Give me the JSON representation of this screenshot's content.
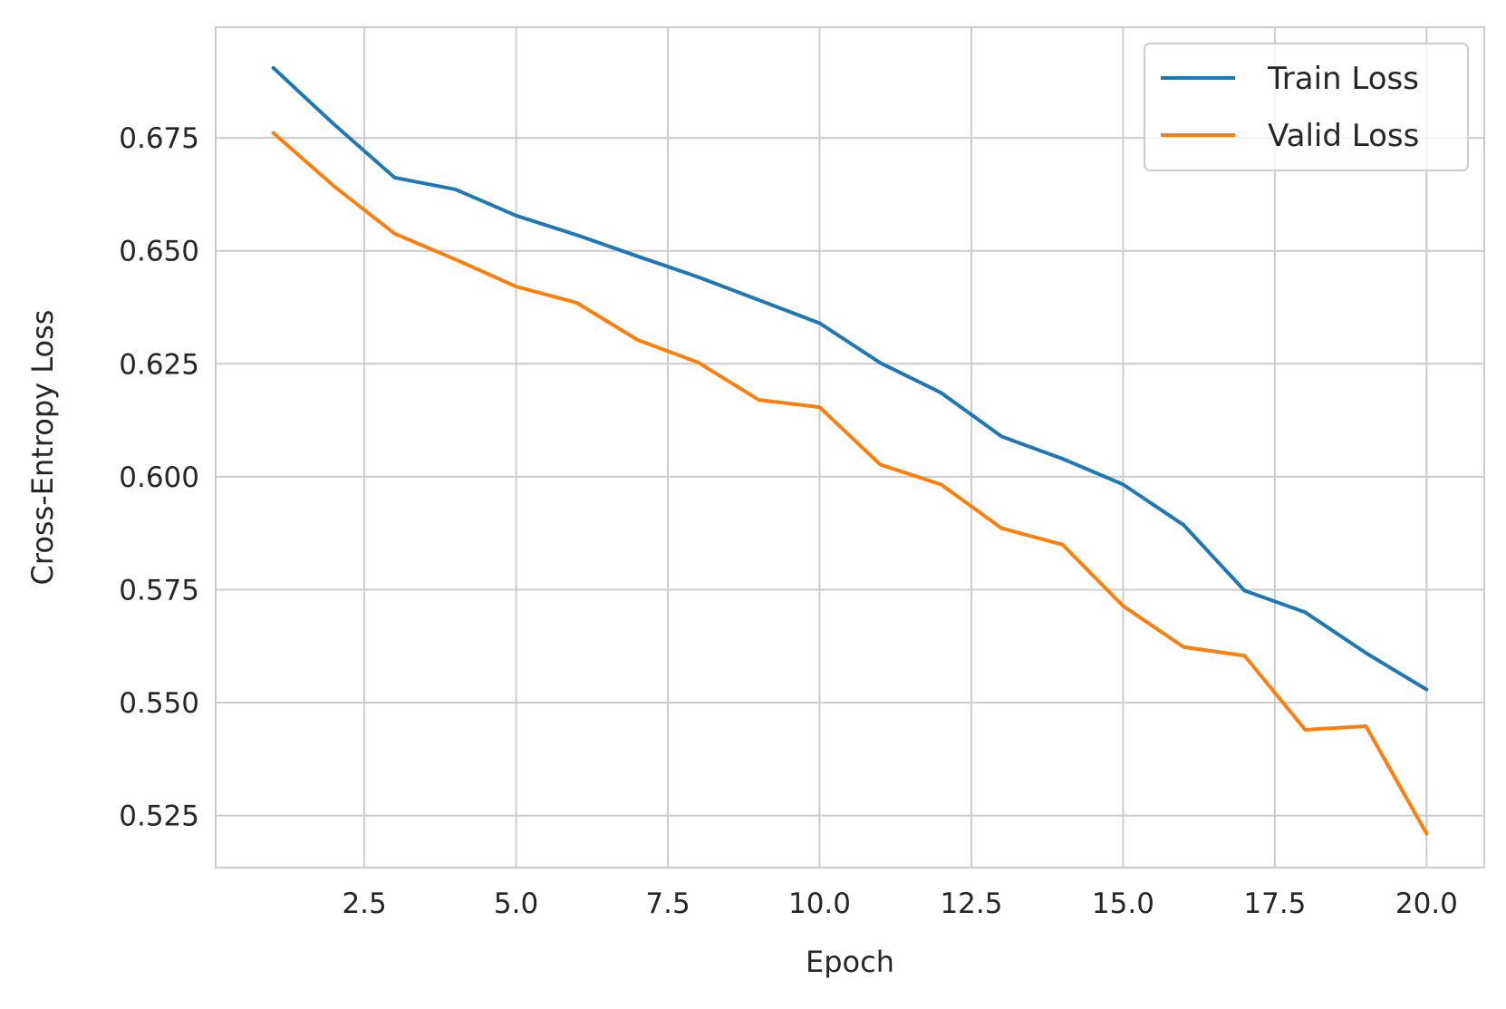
{
  "chart_data": {
    "type": "line",
    "title": "",
    "xlabel": "Epoch",
    "ylabel": "Cross-Entropy Loss",
    "xlim": [
      0.05,
      20.95
    ],
    "ylim": [
      0.5135,
      0.6995
    ],
    "grid": true,
    "legend_position": "top-right",
    "x": [
      1,
      2,
      3,
      4,
      5,
      6,
      7,
      8,
      9,
      10,
      11,
      12,
      13,
      14,
      15,
      16,
      17,
      18,
      19,
      20
    ],
    "x_ticks": [
      2.5,
      5.0,
      7.5,
      10.0,
      12.5,
      15.0,
      17.5,
      20.0
    ],
    "x_tick_labels": [
      "2.5",
      "5.0",
      "7.5",
      "10.0",
      "12.5",
      "15.0",
      "17.5",
      "20.0"
    ],
    "y_ticks": [
      0.525,
      0.55,
      0.575,
      0.6,
      0.625,
      0.65,
      0.675
    ],
    "y_tick_labels": [
      "0.525",
      "0.550",
      "0.575",
      "0.600",
      "0.625",
      "0.650",
      "0.675"
    ],
    "series": [
      {
        "name": "Train Loss",
        "color": "#1f77b4",
        "values": [
          0.6905,
          0.678,
          0.6662,
          0.6636,
          0.6578,
          0.6535,
          0.6488,
          0.6442,
          0.6391,
          0.634,
          0.6252,
          0.6186,
          0.6089,
          0.604,
          0.5983,
          0.5893,
          0.5748,
          0.57,
          0.561,
          0.5529
        ]
      },
      {
        "name": "Valid Loss",
        "color": "#ff7f0e",
        "values": [
          0.6761,
          0.6643,
          0.6538,
          0.6481,
          0.6421,
          0.6385,
          0.6303,
          0.6253,
          0.617,
          0.6154,
          0.6027,
          0.5983,
          0.5886,
          0.585,
          0.5714,
          0.5623,
          0.5604,
          0.544,
          0.5448,
          0.521
        ]
      }
    ]
  }
}
